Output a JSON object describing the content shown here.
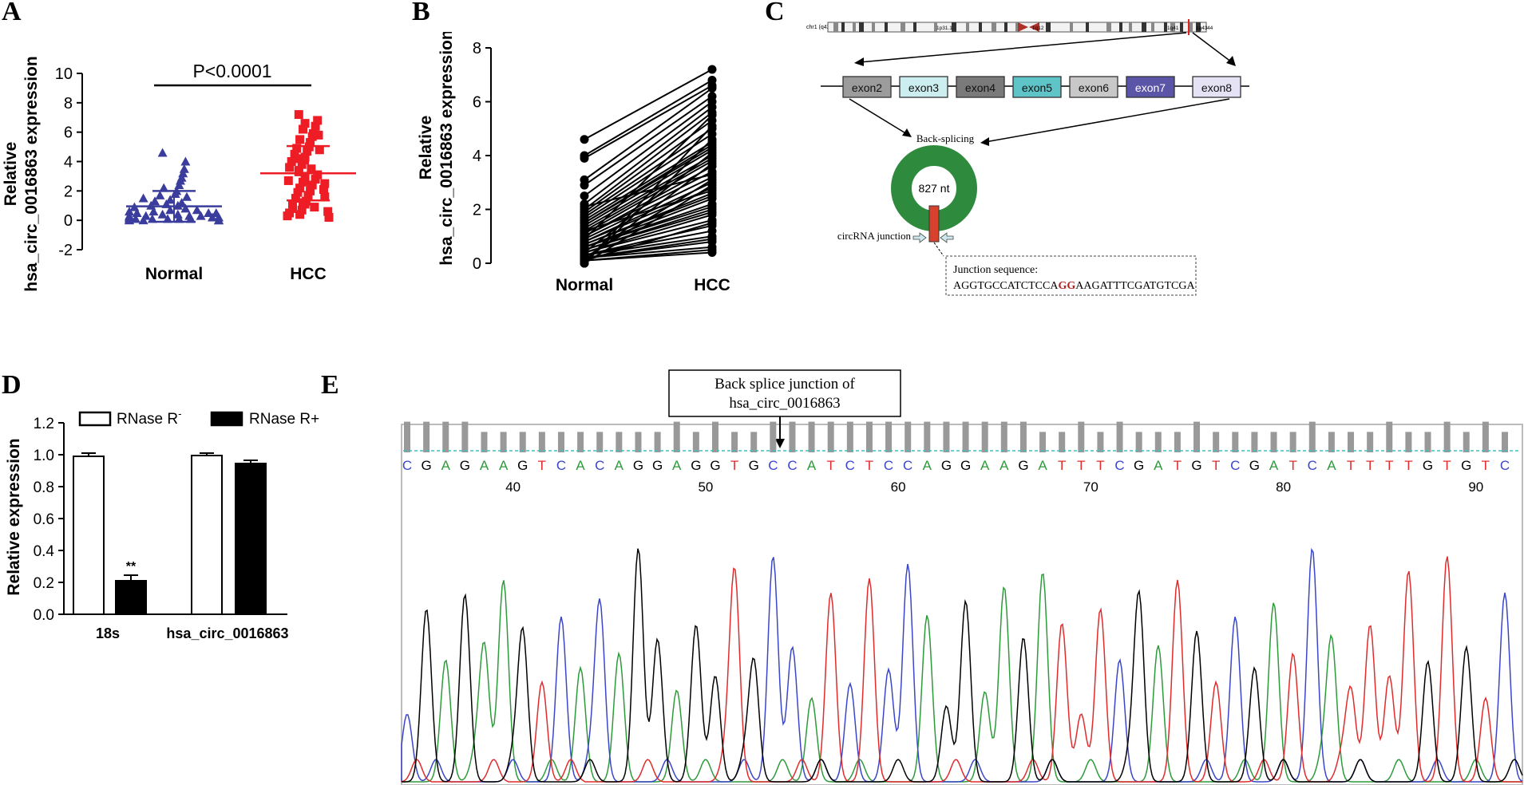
{
  "panels": {
    "a": {
      "label": "A"
    },
    "b": {
      "label": "B"
    },
    "c": {
      "label": "C"
    },
    "d": {
      "label": "D"
    },
    "e": {
      "label": "E"
    }
  },
  "colors": {
    "normal": "#3a3d9c",
    "hcc": "#ee1c25",
    "green": "#2e8b3e",
    "red": "#d8412c",
    "bar_black": "#000000"
  },
  "chart_data": [
    {
      "id": "A",
      "type": "scatter",
      "title": "",
      "ylabel": "Relative hsa_circ_0016863 expression",
      "ylabel_lines": [
        "Relative",
        "hsa_circ_0016863 expression"
      ],
      "categories": [
        "Normal",
        "HCC"
      ],
      "ylim": [
        -2,
        10
      ],
      "yticks": [
        "-2",
        "0",
        "2",
        "4",
        "6",
        "8",
        "10"
      ],
      "annotation": "P<0.0001",
      "series": [
        {
          "name": "Normal",
          "marker": "triangle",
          "values": [
            4.6,
            4.0,
            3.5,
            3.2,
            2.9,
            2.7,
            2.4,
            2.2,
            2.0,
            1.8,
            1.7,
            1.6,
            1.5,
            1.4,
            1.3,
            1.2,
            1.1,
            1.0,
            1.0,
            0.9,
            0.8,
            0.7,
            0.7,
            0.6,
            0.5,
            0.5,
            0.4,
            0.4,
            0.3,
            0.3,
            0.3,
            0.2,
            0.2,
            0.2,
            0.1,
            0.1,
            0.1,
            0.1,
            0.1,
            0.0,
            0.0,
            0.0,
            0.0,
            0.0,
            0.0,
            0.1,
            0.2,
            0.3,
            0.5,
            0.6
          ],
          "mean": 0.95,
          "sd": 1.05
        },
        {
          "name": "HCC",
          "marker": "square",
          "values": [
            7.2,
            6.8,
            6.6,
            6.4,
            6.2,
            5.9,
            5.7,
            5.5,
            5.3,
            5.0,
            4.9,
            4.7,
            4.5,
            4.3,
            4.1,
            4.0,
            3.8,
            3.6,
            3.5,
            3.3,
            3.1,
            3.0,
            2.8,
            2.6,
            2.5,
            2.4,
            2.2,
            2.0,
            1.9,
            1.7,
            1.5,
            1.3,
            1.1,
            1.0,
            0.9,
            0.7,
            0.5,
            0.4,
            0.3,
            0.2,
            0.6,
            0.8,
            1.2,
            1.6,
            2.1,
            2.7,
            3.4,
            4.2,
            4.8,
            5.8
          ],
          "mean": 3.2,
          "sd": 1.85
        }
      ]
    },
    {
      "id": "B",
      "type": "line",
      "title": "",
      "ylabel": "Relative hsa_circ_0016863 expression",
      "ylabel_lines": [
        "Relative",
        "hsa_circ_0016863 expression"
      ],
      "categories": [
        "Normal",
        "HCC"
      ],
      "ylim": [
        0,
        8
      ],
      "yticks": [
        "0",
        "2",
        "4",
        "6",
        "8"
      ],
      "pairs": [
        [
          4.6,
          7.2
        ],
        [
          4.0,
          6.8
        ],
        [
          3.9,
          6.6
        ],
        [
          3.1,
          6.5
        ],
        [
          2.9,
          6.2
        ],
        [
          2.5,
          6.0
        ],
        [
          2.2,
          5.8
        ],
        [
          2.0,
          5.6
        ],
        [
          1.9,
          5.3
        ],
        [
          1.8,
          5.0
        ],
        [
          1.7,
          4.8
        ],
        [
          1.6,
          4.5
        ],
        [
          1.5,
          4.3
        ],
        [
          1.4,
          4.2
        ],
        [
          1.3,
          4.0
        ],
        [
          1.2,
          3.9
        ],
        [
          1.1,
          3.8
        ],
        [
          1.0,
          3.6
        ],
        [
          1.0,
          3.4
        ],
        [
          0.9,
          3.2
        ],
        [
          0.8,
          3.0
        ],
        [
          0.8,
          2.8
        ],
        [
          0.7,
          2.6
        ],
        [
          0.7,
          2.5
        ],
        [
          0.6,
          2.4
        ],
        [
          0.6,
          2.2
        ],
        [
          0.5,
          2.0
        ],
        [
          0.5,
          1.9
        ],
        [
          0.4,
          1.8
        ],
        [
          0.4,
          1.6
        ],
        [
          0.3,
          1.4
        ],
        [
          0.3,
          1.2
        ],
        [
          0.3,
          1.0
        ],
        [
          0.2,
          0.9
        ],
        [
          0.2,
          0.8
        ],
        [
          0.2,
          0.6
        ],
        [
          0.1,
          0.5
        ],
        [
          0.1,
          0.4
        ],
        [
          0.1,
          3.7
        ],
        [
          0.0,
          4.6
        ],
        [
          0.0,
          2.9
        ],
        [
          0.0,
          5.1
        ],
        [
          0.1,
          1.5
        ],
        [
          0.2,
          3.1
        ],
        [
          0.4,
          4.1
        ],
        [
          0.6,
          2.1
        ],
        [
          0.9,
          5.5
        ],
        [
          1.2,
          2.7
        ],
        [
          1.5,
          4.4
        ],
        [
          2.1,
          3.3
        ]
      ]
    },
    {
      "id": "D",
      "type": "bar",
      "title": "",
      "ylabel": "Relative expression",
      "categories": [
        "18s",
        "hsa_circ_0016863"
      ],
      "ylim": [
        0,
        1.2
      ],
      "yticks": [
        "0.0",
        "0.2",
        "0.4",
        "0.6",
        "0.8",
        "1.0",
        "1.2"
      ],
      "series": [
        {
          "name": "RNase R-",
          "values": [
            0.99,
            0.995
          ],
          "errors": [
            0.02,
            0.015
          ]
        },
        {
          "name": "RNase R+",
          "values": [
            0.21,
            0.945
          ],
          "errors": [
            0.035,
            0.02
          ]
        }
      ],
      "legend": {
        "minus_prefix": "RNase R",
        "minus_sup": "-",
        "plus": "RNase R+"
      },
      "significance": "**"
    },
    {
      "id": "E",
      "type": "line",
      "title": "Back splice junction of hsa_circ_0016863",
      "title_lines": [
        "Back splice junction of",
        "hsa_circ_0016863"
      ],
      "sequence": "CGAGAAGTCACAGGAGGTGCCATCTCCAGGAAGATTTCGATGTCGATCATTTTGTGTC",
      "positions": [
        "40",
        "50",
        "60",
        "70",
        "80",
        "90"
      ],
      "quality_bars": [
        12,
        12,
        12,
        12,
        8,
        8,
        8,
        8,
        8,
        8,
        8,
        8,
        8,
        8,
        12,
        8,
        12,
        8,
        8,
        12,
        12,
        12,
        12,
        12,
        12,
        12,
        12,
        12,
        12,
        12,
        12,
        12,
        12,
        8,
        8,
        12,
        8,
        12,
        8,
        8,
        8,
        12,
        8,
        8,
        8,
        8,
        8,
        12,
        8,
        8,
        8,
        12,
        8,
        8,
        12,
        8,
        12,
        8
      ]
    }
  ],
  "diagram_c": {
    "chromosome_label": "chr1 (q42.2)",
    "band_labels": [
      "1p31.1",
      "1q12",
      "1q41",
      "1q43",
      "44"
    ],
    "exons": [
      {
        "label": "exon2",
        "color": "#9c9c9c"
      },
      {
        "label": "exon3",
        "color": "#cdeef0"
      },
      {
        "label": "exon4",
        "color": "#7a7a7a"
      },
      {
        "label": "exon5",
        "color": "#5fc4c8"
      },
      {
        "label": "exon6",
        "color": "#c8c8c8"
      },
      {
        "label": "exon7",
        "color": "#5b55a8"
      },
      {
        "label": "exon8",
        "color": "#e4e2f4"
      }
    ],
    "back_splicing": "Back-splicing",
    "circ_length": "827 nt",
    "junction_label": "circRNA junction",
    "junction_title": "Junction sequence:",
    "junction_seq_pre": "AGGTGCCATCTCCA",
    "junction_seq_mid": "GG",
    "junction_seq_post": "AAGATTTCGATGTCGA"
  }
}
